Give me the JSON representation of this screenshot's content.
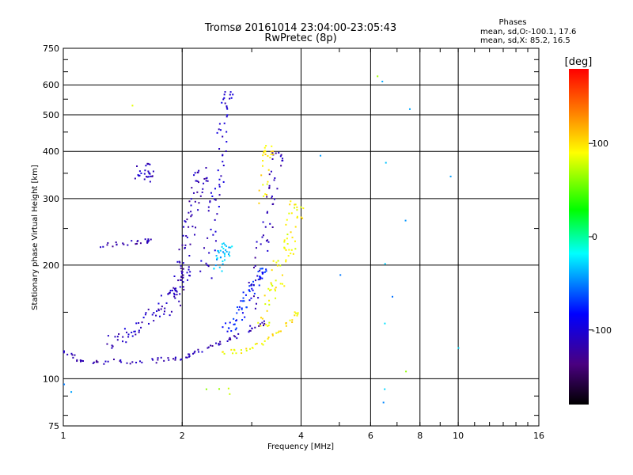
{
  "chart_data": {
    "type": "scatter",
    "title": "Tromsø 20161014 23:04:00-23:05:43",
    "subtitle": "RwPretec (8p)",
    "phases_legend": {
      "heading": "Phases",
      "line_o": "mean, sd,O:-100.1, 17.6",
      "line_x": "mean, sd,X: 85.2, 16.5"
    },
    "xlabel": "Frequency [MHz]",
    "ylabel": "Stationary phase Virtual Height [km]",
    "xscale": "log",
    "yscale": "log",
    "xlim": [
      1,
      16
    ],
    "ylim": [
      75,
      750
    ],
    "grid": true,
    "x_ticks": [
      {
        "v": 1,
        "label": "1"
      },
      {
        "v": 2,
        "label": "2"
      },
      {
        "v": 4,
        "label": "4"
      },
      {
        "v": 6,
        "label": "6"
      },
      {
        "v": 8,
        "label": "8"
      },
      {
        "v": 10,
        "label": "10"
      },
      {
        "v": 16,
        "label": "16"
      }
    ],
    "y_ticks": [
      {
        "v": 75,
        "label": "75"
      },
      {
        "v": 100,
        "label": "100"
      },
      {
        "v": 200,
        "label": "200"
      },
      {
        "v": 300,
        "label": "300"
      },
      {
        "v": 400,
        "label": "400"
      },
      {
        "v": 500,
        "label": "500"
      },
      {
        "v": 600,
        "label": "600"
      },
      {
        "v": 750,
        "label": "750"
      }
    ],
    "colorbar": {
      "label": "[deg]",
      "range": [
        -180,
        180
      ],
      "ticks": [
        {
          "v": 100,
          "label": "100"
        },
        {
          "v": 0,
          "label": "0"
        },
        {
          "v": -100,
          "label": "-100"
        }
      ]
    },
    "traces": [
      {
        "name": "",
        "x": [
          1.0,
          1.05,
          1.1,
          1.2,
          1.3,
          1.45,
          1.6,
          1.75,
          1.9,
          2.0,
          2.1,
          2.2,
          2.35,
          2.5,
          2.65,
          2.8,
          3.0,
          3.2
        ],
        "y": [
          118,
          115,
          112,
          111,
          111,
          111,
          111,
          112,
          113,
          114,
          116,
          118,
          121,
          124,
          127,
          131,
          136,
          140
        ],
        "phase": -115,
        "jitter": 0.012
      },
      {
        "name": "",
        "x": [
          2.5,
          2.7,
          2.9,
          3.1,
          3.3,
          3.5,
          3.7,
          3.9
        ],
        "y": [
          118,
          118,
          119,
          122,
          127,
          133,
          140,
          148
        ],
        "phase": 95,
        "jitter": 0.012
      },
      {
        "name": "",
        "x": [
          1.3,
          1.4,
          1.5,
          1.6,
          1.7,
          1.8,
          1.9,
          2.0,
          2.05
        ],
        "y": [
          125,
          128,
          133,
          140,
          148,
          158,
          168,
          180,
          192
        ],
        "phase": -110,
        "jitter": 0.03
      },
      {
        "name": "",
        "x": [
          1.25,
          1.35,
          1.45,
          1.55,
          1.65
        ],
        "y": [
          226,
          227,
          228,
          230,
          233
        ],
        "phase": -115,
        "jitter": 0.012
      },
      {
        "name": "",
        "x": [
          1.55,
          1.6,
          1.65
        ],
        "y": [
          350,
          360,
          345
        ],
        "phase": -110,
        "jitter": 0.03
      },
      {
        "name": "",
        "x": [
          1.9,
          1.95,
          2.0,
          2.05,
          2.1,
          2.15,
          2.2,
          2.25
        ],
        "y": [
          150,
          175,
          200,
          230,
          260,
          290,
          320,
          350
        ],
        "phase": -115,
        "jitter": 0.04
      },
      {
        "name": "",
        "x": [
          2.3,
          2.35,
          2.4,
          2.45,
          2.5,
          2.55,
          2.6
        ],
        "y": [
          190,
          230,
          280,
          330,
          390,
          460,
          560
        ],
        "phase": -105,
        "jitter": 0.035
      },
      {
        "name": "",
        "x": [
          2.45,
          2.5,
          2.55,
          2.6
        ],
        "y": [
          200,
          210,
          215,
          220
        ],
        "phase": -35,
        "jitter": 0.03
      },
      {
        "name": "",
        "x": [
          2.6,
          2.7,
          2.8,
          2.9,
          3.0,
          3.1,
          3.2
        ],
        "y": [
          135,
          140,
          150,
          160,
          170,
          180,
          190
        ],
        "phase": -75,
        "jitter": 0.03
      },
      {
        "name": "",
        "x": [
          3.0,
          3.1,
          3.2,
          3.3,
          3.4,
          3.5
        ],
        "y": [
          160,
          190,
          230,
          270,
          320,
          380
        ],
        "phase": -115,
        "jitter": 0.035
      },
      {
        "name": "",
        "x": [
          3.2,
          3.3,
          3.4,
          3.5,
          3.6,
          3.7,
          3.8,
          3.9
        ],
        "y": [
          140,
          155,
          170,
          190,
          210,
          230,
          250,
          280
        ],
        "phase": 90,
        "jitter": 0.045
      },
      {
        "name": "",
        "x": [
          3.2,
          3.25,
          3.3
        ],
        "y": [
          300,
          350,
          400
        ],
        "phase": 95,
        "jitter": 0.03
      },
      {
        "name": "",
        "x": [
          6.5,
          6.5,
          6.5,
          6.55,
          6.5,
          6.4,
          7.5,
          7.3,
          6.8,
          9.5,
          10.0,
          4.5,
          5.0,
          1.0,
          1.05
        ],
        "y": [
          95,
          87,
          140,
          200,
          370,
          605,
          520,
          260,
          165,
          340,
          120,
          385,
          190,
          96,
          92
        ],
        "phase": -40,
        "jitter": 0.01
      },
      {
        "name": "",
        "x": [
          2.5,
          2.6,
          2.65,
          1.5,
          2.3,
          7.4,
          6.3
        ],
        "y": [
          93,
          95,
          90,
          525,
          93,
          105,
          630
        ],
        "phase": 75,
        "jitter": 0.01
      }
    ]
  }
}
